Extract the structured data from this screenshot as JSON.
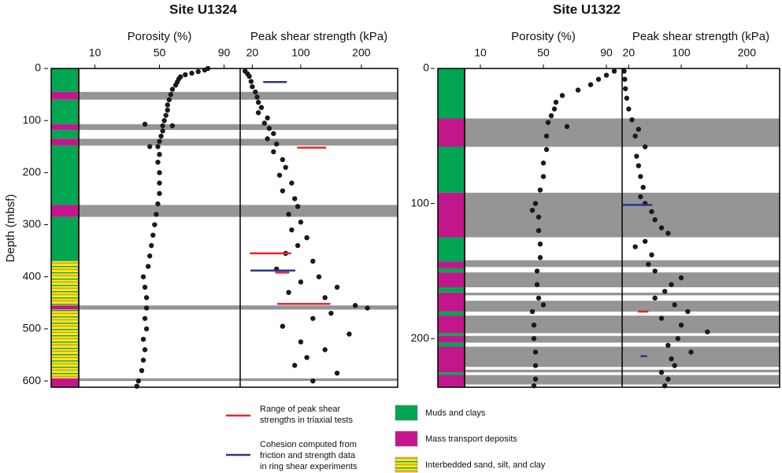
{
  "chart_data": [
    {
      "type": "scatter",
      "title": "Site U1324",
      "ylabel": "Depth (mbsf)",
      "ylim": [
        0,
        612
      ],
      "yticks": [
        0,
        100,
        200,
        300,
        400,
        500,
        600
      ],
      "panels": [
        {
          "xlabel": "Porosity (%)",
          "xlim": [
            0,
            100
          ],
          "xticks": [
            10,
            50,
            90
          ],
          "y": [
            0,
            3,
            6,
            9,
            12,
            16,
            20,
            26,
            32,
            40,
            50,
            60,
            70,
            80,
            90,
            100,
            107,
            110,
            110,
            120,
            130,
            140,
            150,
            150,
            165,
            180,
            200,
            220,
            240,
            260,
            280,
            300,
            320,
            340,
            360,
            380,
            400,
            420,
            440,
            460,
            480,
            500,
            520,
            540,
            560,
            580,
            600,
            610
          ],
          "x": [
            80,
            78,
            74,
            70,
            66,
            63,
            62,
            61,
            60,
            58,
            57,
            56,
            55,
            55,
            54,
            53,
            41,
            52,
            58,
            52,
            51,
            50,
            49,
            44,
            50,
            49,
            50,
            50,
            50,
            49,
            48,
            47,
            46,
            45,
            44,
            43,
            40,
            41,
            42,
            42,
            41,
            42,
            40,
            41,
            40,
            39,
            37,
            36
          ]
        },
        {
          "xlabel": "Peak shear strength (kPa)",
          "xlim": [
            0,
            260
          ],
          "xticks": [
            20,
            100,
            200
          ],
          "y": [
            5,
            10,
            15,
            25,
            35,
            45,
            55,
            65,
            75,
            85,
            95,
            105,
            115,
            125,
            135,
            145,
            160,
            175,
            190,
            205,
            220,
            235,
            250,
            265,
            280,
            295,
            310,
            325,
            340,
            355,
            370,
            385,
            400,
            410,
            420,
            430,
            440,
            455,
            460,
            470,
            480,
            495,
            510,
            525,
            540,
            555,
            570,
            585,
            600
          ],
          "x": [
            8,
            12,
            15,
            18,
            20,
            25,
            28,
            30,
            35,
            30,
            45,
            40,
            48,
            55,
            45,
            60,
            55,
            70,
            75,
            65,
            85,
            70,
            90,
            95,
            80,
            100,
            85,
            110,
            95,
            75,
            120,
            60,
            130,
            100,
            160,
            80,
            140,
            190,
            210,
            150,
            120,
            70,
            180,
            100,
            140,
            110,
            90,
            160,
            120
          ]
        }
      ],
      "triaxial": [
        {
          "depth": 152,
          "min": 94,
          "max": 142
        },
        {
          "depth": 355,
          "min": 16,
          "max": 84
        },
        {
          "depth": 392,
          "min": 58,
          "max": 81
        },
        {
          "depth": 452,
          "min": 61,
          "max": 149
        }
      ],
      "ring_shear": [
        {
          "depth": 26,
          "min": 38,
          "max": 77
        },
        {
          "depth": 388,
          "min": 17,
          "max": 91
        }
      ],
      "bands": [
        [
          45,
          60
        ],
        [
          107,
          118
        ],
        [
          135,
          148
        ],
        [
          262,
          285
        ],
        [
          455,
          463
        ],
        [
          595,
          600
        ]
      ],
      "lithology": [
        [
          0,
          45,
          0
        ],
        [
          45,
          60,
          1
        ],
        [
          60,
          107,
          0
        ],
        [
          107,
          118,
          1
        ],
        [
          118,
          135,
          0
        ],
        [
          135,
          148,
          1
        ],
        [
          148,
          262,
          0
        ],
        [
          262,
          285,
          1
        ],
        [
          285,
          370,
          0
        ],
        [
          370,
          455,
          2
        ],
        [
          455,
          463,
          1
        ],
        [
          463,
          595,
          2
        ],
        [
          595,
          612,
          1
        ]
      ]
    },
    {
      "type": "scatter",
      "title": "Site U1322",
      "ylim": [
        0,
        236
      ],
      "yticks": [
        0,
        100,
        200
      ],
      "panels": [
        {
          "xlabel": "Porosity (%)",
          "xlim": [
            0,
            100
          ],
          "xticks": [
            10,
            50,
            90
          ],
          "y": [
            2,
            5,
            8,
            12,
            16,
            20,
            25,
            30,
            35,
            40,
            43,
            50,
            60,
            70,
            80,
            90,
            100,
            105,
            110,
            120,
            130,
            140,
            150,
            160,
            170,
            175,
            180,
            190,
            200,
            210,
            220,
            230,
            235
          ],
          "x": [
            95,
            90,
            85,
            80,
            72,
            62,
            58,
            57,
            55,
            53,
            65,
            52,
            52,
            50,
            50,
            48,
            45,
            43,
            47,
            47,
            48,
            48,
            46,
            46,
            47,
            50,
            43,
            44,
            44,
            45,
            45,
            45,
            44
          ]
        },
        {
          "xlabel": "Peak shear strength (kPa)",
          "xlim": [
            10,
            250
          ],
          "xticks": [
            20,
            100,
            200
          ],
          "y": [
            2,
            8,
            15,
            22,
            30,
            38,
            45,
            50,
            58,
            65,
            72,
            80,
            88,
            95,
            100,
            106,
            112,
            118,
            122,
            128,
            132,
            138,
            145,
            150,
            155,
            160,
            165,
            170,
            175,
            180,
            185,
            190,
            195,
            200,
            205,
            210,
            215,
            220,
            225,
            230,
            235
          ],
          "x": [
            13,
            14,
            15,
            17,
            20,
            25,
            35,
            30,
            45,
            32,
            35,
            38,
            42,
            38,
            45,
            55,
            60,
            70,
            80,
            45,
            30,
            55,
            50,
            60,
            100,
            85,
            75,
            60,
            90,
            110,
            70,
            100,
            140,
            95,
            80,
            115,
            85,
            90,
            70,
            80,
            75
          ]
        }
      ],
      "triaxial": [
        {
          "depth": 180,
          "min": 34,
          "max": 50
        }
      ],
      "ring_shear": [
        {
          "depth": 101,
          "min": 10,
          "max": 56
        },
        {
          "depth": 213,
          "min": 38,
          "max": 48
        }
      ],
      "bands": [
        [
          37,
          58
        ],
        [
          92,
          125
        ],
        [
          142,
          147
        ],
        [
          151,
          162
        ],
        [
          166,
          168
        ],
        [
          172,
          180
        ],
        [
          183,
          196
        ],
        [
          198,
          203
        ],
        [
          206,
          221
        ],
        [
          223,
          225
        ],
        [
          227,
          234
        ]
      ],
      "lithology": [
        [
          0,
          37,
          0
        ],
        [
          37,
          58,
          1
        ],
        [
          58,
          92,
          0
        ],
        [
          92,
          125,
          1
        ],
        [
          125,
          143,
          0
        ],
        [
          143,
          148,
          1
        ],
        [
          148,
          151,
          0
        ],
        [
          151,
          162,
          1
        ],
        [
          162,
          166,
          0
        ],
        [
          166,
          180,
          1
        ],
        [
          180,
          183,
          0
        ],
        [
          183,
          196,
          1
        ],
        [
          196,
          198,
          0
        ],
        [
          198,
          203,
          1
        ],
        [
          203,
          206,
          0
        ],
        [
          206,
          225,
          1
        ],
        [
          225,
          227,
          0
        ],
        [
          227,
          236,
          1
        ]
      ]
    }
  ],
  "legend": {
    "lines": [
      {
        "label": [
          "Range of peak shear",
          "strengths in triaxial tests"
        ],
        "color": "#e3262b"
      },
      {
        "label": [
          "Cohesion computed from",
          "friction and strength data",
          "in ring shear experiments"
        ],
        "color": "#2a3591"
      }
    ],
    "units": [
      {
        "label": "Muds and clays",
        "color": "#00a651"
      },
      {
        "label": "Mass transport deposits",
        "color": "#c4168c"
      },
      {
        "label": "Interbedded sand, silt, and clay",
        "color": "#f3eb1c"
      }
    ]
  },
  "band_color": "#959595",
  "point_color": "#1a1a1a"
}
